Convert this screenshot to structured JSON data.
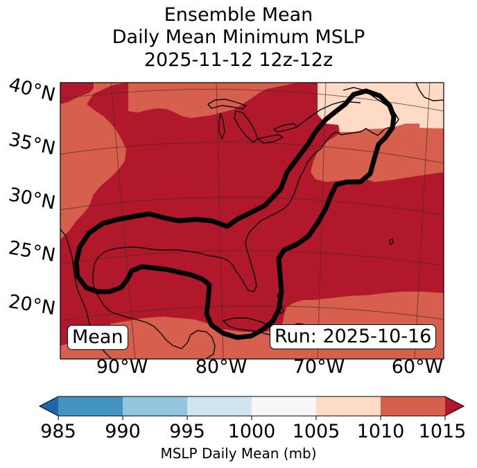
{
  "title": {
    "line1": "Ensemble Mean",
    "line2": "Daily Mean Minimum MSLP",
    "line3": "2025-11-12 12z-12z"
  },
  "map": {
    "lat_labels": [
      "40°N",
      "35°N",
      "30°N",
      "25°N",
      "20°N"
    ],
    "lon_labels": [
      "90°W",
      "80°W",
      "70°W",
      "60°W"
    ],
    "left_box": "Mean",
    "right_box": "Run: 2025-10-16",
    "colors": {
      "dark_red": "#b2182b",
      "mid_red": "#d6604d",
      "light_salmon": "#fddbc7",
      "contour": "#000000"
    }
  },
  "colorbar": {
    "ticks": [
      "985",
      "990",
      "995",
      "1000",
      "1005",
      "1010",
      "1015"
    ],
    "label": "MSLP Daily Mean (mb)",
    "colors": [
      "#2166ac",
      "#4393c3",
      "#92c5de",
      "#d1e5f0",
      "#f7f7f7",
      "#fddbc7",
      "#d6604d",
      "#b2182b"
    ]
  }
}
